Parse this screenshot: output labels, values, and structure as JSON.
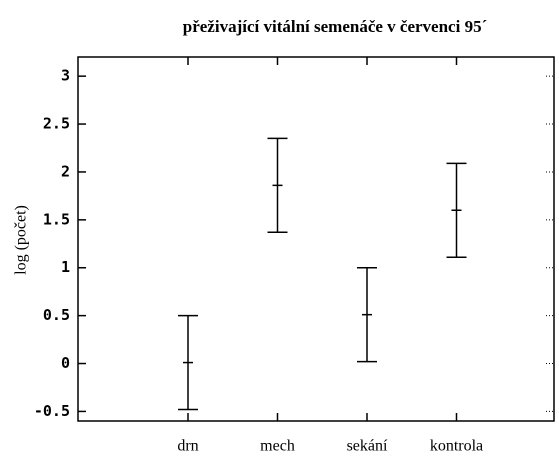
{
  "chart_data": {
    "type": "errorbar",
    "title": "přeživající vitální semenáče v červenci 95´",
    "y_label": "log (počet)",
    "categories": [
      "drn",
      "mech",
      "sekání",
      "kontrola"
    ],
    "values": [
      0.01,
      1.86,
      0.51,
      1.6
    ],
    "errors": [
      0.49,
      0.49,
      0.49,
      0.49
    ],
    "color": "#000000",
    "ylim": [
      -0.6,
      3.2
    ],
    "yticks": [
      {
        "value": -0.5,
        "label": "-0.5"
      },
      0,
      0.5,
      1,
      1.5,
      2,
      2.5,
      3
    ],
    "grid": false
  }
}
